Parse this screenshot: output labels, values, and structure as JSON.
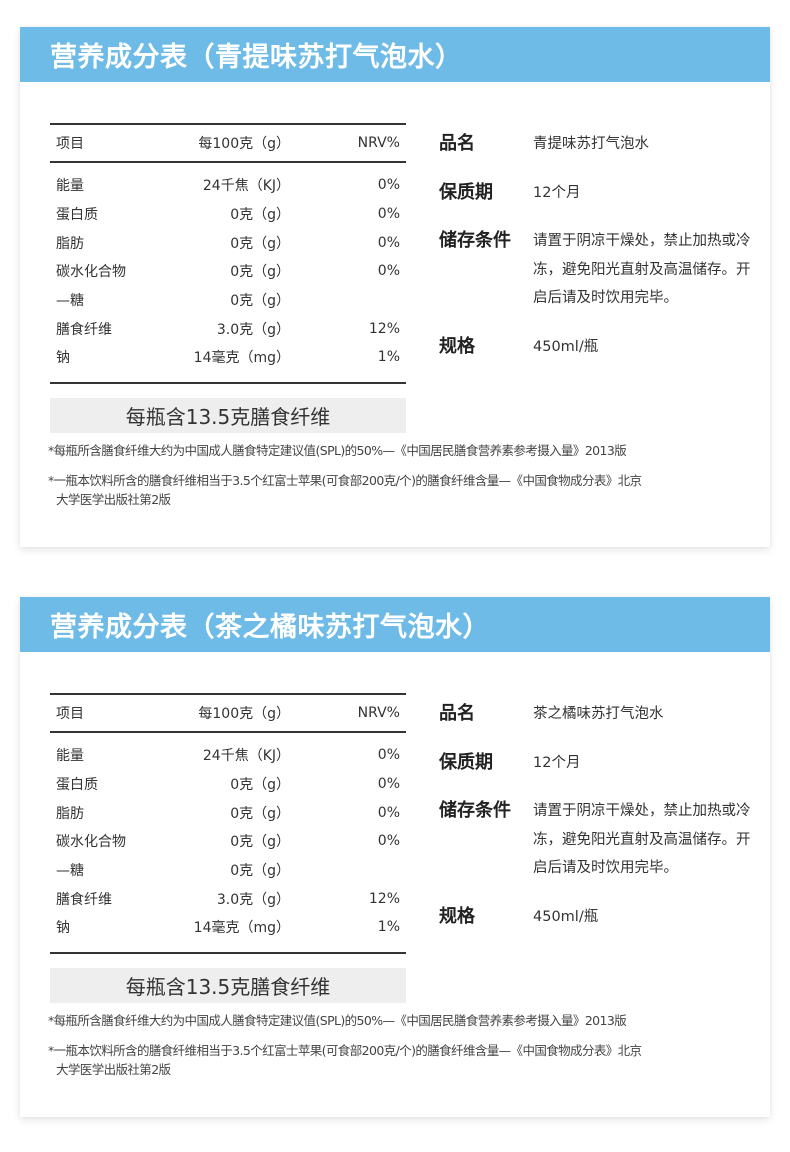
{
  "colors": {
    "header_bg": "#6fbbe7",
    "header_text": "#ffffff",
    "fiber_box_bg": "#eeeeee",
    "rule": "#333333"
  },
  "cards": [
    {
      "title": "营养成分表（青提味苏打气泡水）",
      "table": {
        "headers": [
          "项目",
          "每100克（g）",
          "NRV%"
        ],
        "rows": [
          {
            "name": "能量",
            "amount": "24千焦（KJ）",
            "nrv": "0%"
          },
          {
            "name": "蛋白质",
            "amount": "0克（g）",
            "nrv": "0%"
          },
          {
            "name": "脂肪",
            "amount": "0克（g）",
            "nrv": "0%"
          },
          {
            "name": "碳水化合物",
            "amount": "0克（g）",
            "nrv": "0%"
          },
          {
            "name": "—糖",
            "amount": "0克（g）",
            "nrv": ""
          },
          {
            "name": "膳食纤维",
            "amount": "3.0克（g）",
            "nrv": "12%"
          },
          {
            "name": "钠",
            "amount": "14毫克（mg）",
            "nrv": "1%"
          }
        ]
      },
      "fiber_note": "每瓶含13.5克膳食纤维",
      "info": [
        {
          "label": "品名",
          "value": "青提味苏打气泡水"
        },
        {
          "label": "保质期",
          "value": "12个月"
        },
        {
          "label": "储存条件",
          "value": "请置于阴凉干燥处，禁止加热或冷冻，避免阳光直射及高温储存。开启后请及时饮用完毕。"
        },
        {
          "label": "规格",
          "value": "450ml/瓶"
        }
      ],
      "notes": [
        "*每瓶所含膳食纤维大约为中国成人膳食特定建议值(SPL)的50%—《中国居民膳食营养素参考摄入量》2013版",
        "*一瓶本饮料所含的膳食纤维相当于3.5个红富士苹果(可食部200克/个)的膳食纤维含量—《中国食物成分表》北京",
        "大学医学出版社第2版"
      ]
    },
    {
      "title": "营养成分表（茶之橘味苏打气泡水）",
      "table": {
        "headers": [
          "项目",
          "每100克（g）",
          "NRV%"
        ],
        "rows": [
          {
            "name": "能量",
            "amount": "24千焦（KJ）",
            "nrv": "0%"
          },
          {
            "name": "蛋白质",
            "amount": "0克（g）",
            "nrv": "0%"
          },
          {
            "name": "脂肪",
            "amount": "0克（g）",
            "nrv": "0%"
          },
          {
            "name": "碳水化合物",
            "amount": "0克（g）",
            "nrv": "0%"
          },
          {
            "name": "—糖",
            "amount": "0克（g）",
            "nrv": ""
          },
          {
            "name": "膳食纤维",
            "amount": "3.0克（g）",
            "nrv": "12%"
          },
          {
            "name": "钠",
            "amount": "14毫克（mg）",
            "nrv": "1%"
          }
        ]
      },
      "fiber_note": "每瓶含13.5克膳食纤维",
      "info": [
        {
          "label": "品名",
          "value": "茶之橘味苏打气泡水"
        },
        {
          "label": "保质期",
          "value": "12个月"
        },
        {
          "label": "储存条件",
          "value": "请置于阴凉干燥处，禁止加热或冷冻，避免阳光直射及高温储存。开启后请及时饮用完毕。"
        },
        {
          "label": "规格",
          "value": "450ml/瓶"
        }
      ],
      "notes": [
        "*每瓶所含膳食纤维大约为中国成人膳食特定建议值(SPL)的50%—《中国居民膳食营养素参考摄入量》2013版",
        "*一瓶本饮料所含的膳食纤维相当于3.5个红富士苹果(可食部200克/个)的膳食纤维含量—《中国食物成分表》北京",
        "大学医学出版社第2版"
      ]
    }
  ]
}
